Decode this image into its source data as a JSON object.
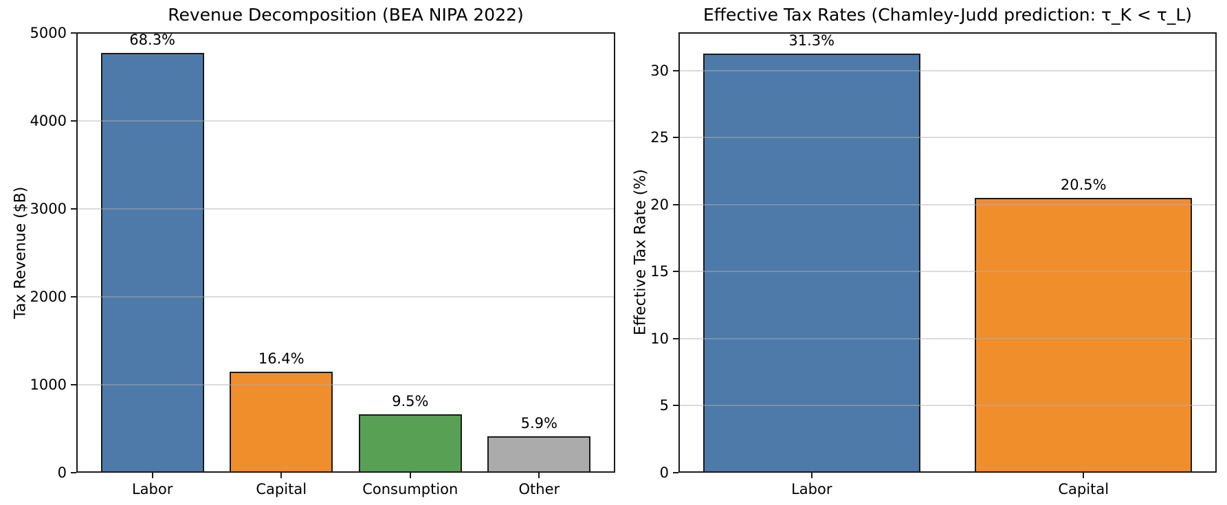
{
  "figure": {
    "background_color": "#ffffff",
    "text_color": "#1a1a1a",
    "grid_color": "#b0b0b0",
    "bar_edge_color": "#1a1a1a"
  },
  "chart_data": [
    {
      "type": "bar",
      "title": "Revenue Decomposition (BEA NIPA 2022)",
      "xlabel": "",
      "ylabel": "Tax Revenue ($B)",
      "categories": [
        "Labor",
        "Capital",
        "Consumption",
        "Other"
      ],
      "values": [
        4767,
        1145,
        663,
        412
      ],
      "bar_labels": [
        "68.3%",
        "16.4%",
        "9.5%",
        "5.9%"
      ],
      "colors": [
        "#4d7aa9",
        "#f18e2c",
        "#58a154",
        "#ababab"
      ],
      "ylim": [
        0,
        5005
      ],
      "yticks": [
        0,
        1000,
        2000,
        3000,
        4000,
        5000
      ],
      "grid": true,
      "legend": "none"
    },
    {
      "type": "bar",
      "title": "Effective Tax Rates (Chamley-Judd prediction: τ_K < τ_L)",
      "xlabel": "",
      "ylabel": "Effective Tax Rate (%)",
      "categories": [
        "Labor",
        "Capital"
      ],
      "values": [
        31.3,
        20.5
      ],
      "bar_labels": [
        "31.3%",
        "20.5%"
      ],
      "colors": [
        "#4d7aa9",
        "#f18e2c"
      ],
      "ylim": [
        0,
        32.87
      ],
      "yticks": [
        0,
        5,
        10,
        15,
        20,
        25,
        30
      ],
      "grid": true,
      "legend": "none"
    }
  ]
}
